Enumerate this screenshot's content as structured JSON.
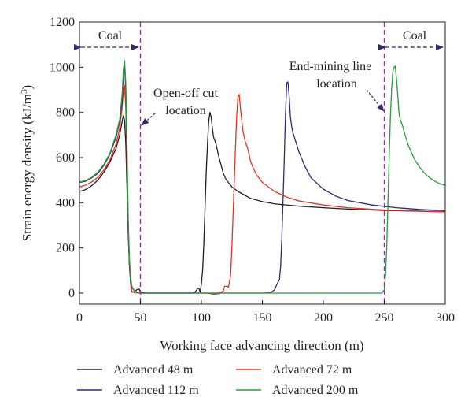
{
  "chart_data": {
    "type": "line",
    "xlabel": "Working face advancing direction (m)",
    "ylabel": "Strain energy density (kJ/m",
    "ylabel_sup": "3",
    "ylabel_close": ")",
    "xlim": [
      0,
      300
    ],
    "ylim": [
      -40,
      1200
    ],
    "x_ticks": [
      0,
      50,
      100,
      150,
      200,
      250,
      300
    ],
    "y_ticks": [
      0,
      200,
      400,
      600,
      800,
      1000,
      1200
    ],
    "grid": false,
    "legend_position": "bottom",
    "series": [
      {
        "name": "Advanced 48 m",
        "color": "#231f20",
        "points": [
          [
            0,
            450
          ],
          [
            5,
            458
          ],
          [
            10,
            475
          ],
          [
            15,
            500
          ],
          [
            20,
            535
          ],
          [
            25,
            580
          ],
          [
            30,
            640
          ],
          [
            33,
            700
          ],
          [
            35,
            760
          ],
          [
            36,
            785
          ],
          [
            37,
            765
          ],
          [
            38,
            660
          ],
          [
            39,
            460
          ],
          [
            40,
            260
          ],
          [
            41,
            120
          ],
          [
            42,
            40
          ],
          [
            43,
            5
          ],
          [
            45,
            5
          ],
          [
            47,
            15
          ],
          [
            49,
            18
          ],
          [
            50,
            5
          ],
          [
            55,
            0
          ],
          [
            92,
            0
          ],
          [
            95,
            5
          ],
          [
            97,
            22
          ],
          [
            98,
            20
          ],
          [
            99,
            5
          ],
          [
            100,
            40
          ],
          [
            101,
            100
          ],
          [
            102,
            220
          ],
          [
            103,
            380
          ],
          [
            104,
            540
          ],
          [
            105,
            660
          ],
          [
            106,
            760
          ],
          [
            107,
            800
          ],
          [
            108,
            780
          ],
          [
            109,
            730
          ],
          [
            110,
            690
          ],
          [
            112,
            660
          ],
          [
            114,
            610
          ],
          [
            116,
            570
          ],
          [
            118,
            530
          ],
          [
            120,
            505
          ],
          [
            125,
            470
          ],
          [
            130,
            450
          ],
          [
            140,
            420
          ],
          [
            150,
            405
          ],
          [
            160,
            395
          ],
          [
            180,
            385
          ],
          [
            200,
            378
          ],
          [
            220,
            372
          ],
          [
            250,
            366
          ],
          [
            300,
            360
          ]
        ]
      },
      {
        "name": "Advanced 72 m",
        "color": "#e8311f",
        "points": [
          [
            0,
            470
          ],
          [
            5,
            478
          ],
          [
            10,
            492
          ],
          [
            15,
            512
          ],
          [
            20,
            545
          ],
          [
            25,
            590
          ],
          [
            30,
            660
          ],
          [
            33,
            730
          ],
          [
            35,
            820
          ],
          [
            36,
            900
          ],
          [
            37,
            920
          ],
          [
            38,
            820
          ],
          [
            39,
            560
          ],
          [
            40,
            300
          ],
          [
            41,
            120
          ],
          [
            42,
            40
          ],
          [
            43,
            8
          ],
          [
            45,
            2
          ],
          [
            50,
            0
          ],
          [
            105,
            0
          ],
          [
            110,
            -5
          ],
          [
            115,
            -2
          ],
          [
            118,
            10
          ],
          [
            119,
            30
          ],
          [
            121,
            30
          ],
          [
            122,
            25
          ],
          [
            123,
            50
          ],
          [
            124,
            80
          ],
          [
            125,
            200
          ],
          [
            126,
            350
          ],
          [
            127,
            500
          ],
          [
            128,
            650
          ],
          [
            129,
            790
          ],
          [
            130,
            870
          ],
          [
            131,
            880
          ],
          [
            132,
            820
          ],
          [
            134,
            720
          ],
          [
            136,
            670
          ],
          [
            138,
            640
          ],
          [
            140,
            590
          ],
          [
            142,
            560
          ],
          [
            145,
            525
          ],
          [
            150,
            490
          ],
          [
            160,
            450
          ],
          [
            170,
            425
          ],
          [
            180,
            408
          ],
          [
            200,
            390
          ],
          [
            220,
            378
          ],
          [
            250,
            368
          ],
          [
            300,
            360
          ]
        ]
      },
      {
        "name": "Advanced 112 m",
        "color": "#2e2a78",
        "points": [
          [
            0,
            490
          ],
          [
            5,
            495
          ],
          [
            10,
            510
          ],
          [
            15,
            530
          ],
          [
            20,
            565
          ],
          [
            25,
            615
          ],
          [
            30,
            690
          ],
          [
            33,
            760
          ],
          [
            35,
            850
          ],
          [
            36,
            960
          ],
          [
            37,
            1005
          ],
          [
            38,
            900
          ],
          [
            39,
            600
          ],
          [
            40,
            300
          ],
          [
            41,
            130
          ],
          [
            42,
            60
          ],
          [
            43,
            25
          ],
          [
            45,
            10
          ],
          [
            47,
            5
          ],
          [
            50,
            0
          ],
          [
            150,
            0
          ],
          [
            157,
            2
          ],
          [
            160,
            15
          ],
          [
            162,
            40
          ],
          [
            164,
            60
          ],
          [
            165,
            120
          ],
          [
            166,
            250
          ],
          [
            167,
            420
          ],
          [
            168,
            600
          ],
          [
            169,
            800
          ],
          [
            170,
            930
          ],
          [
            171,
            935
          ],
          [
            172,
            870
          ],
          [
            173,
            780
          ],
          [
            174,
            740
          ],
          [
            175,
            710
          ],
          [
            176,
            695
          ],
          [
            178,
            660
          ],
          [
            180,
            625
          ],
          [
            185,
            560
          ],
          [
            190,
            510
          ],
          [
            200,
            460
          ],
          [
            210,
            430
          ],
          [
            220,
            410
          ],
          [
            240,
            390
          ],
          [
            260,
            378
          ],
          [
            280,
            370
          ],
          [
            300,
            365
          ]
        ]
      },
      {
        "name": "Advanced 200 m",
        "color": "#2a9a3a",
        "points": [
          [
            0,
            492
          ],
          [
            5,
            498
          ],
          [
            10,
            512
          ],
          [
            15,
            535
          ],
          [
            20,
            570
          ],
          [
            25,
            620
          ],
          [
            30,
            700
          ],
          [
            33,
            770
          ],
          [
            35,
            880
          ],
          [
            36,
            990
          ],
          [
            37,
            1030
          ],
          [
            38,
            930
          ],
          [
            39,
            650
          ],
          [
            40,
            330
          ],
          [
            41,
            150
          ],
          [
            42,
            70
          ],
          [
            43,
            30
          ],
          [
            45,
            10
          ],
          [
            47,
            5
          ],
          [
            50,
            0
          ],
          [
            248,
            0
          ],
          [
            250,
            15
          ],
          [
            251,
            80
          ],
          [
            252,
            200
          ],
          [
            253,
            400
          ],
          [
            254,
            600
          ],
          [
            255,
            780
          ],
          [
            256,
            900
          ],
          [
            257,
            980
          ],
          [
            258,
            1000
          ],
          [
            259,
            1005
          ],
          [
            260,
            950
          ],
          [
            261,
            880
          ],
          [
            262,
            800
          ],
          [
            263,
            770
          ],
          [
            265,
            740
          ],
          [
            267,
            700
          ],
          [
            270,
            650
          ],
          [
            275,
            590
          ],
          [
            280,
            550
          ],
          [
            285,
            520
          ],
          [
            290,
            500
          ],
          [
            295,
            485
          ],
          [
            300,
            478
          ]
        ]
      }
    ],
    "markers": [
      {
        "x": 50,
        "color": "#8a3a9a"
      },
      {
        "x": 250,
        "color": "#8a3a9a"
      }
    ],
    "annotations": {
      "coal_left": "Coal",
      "coal_right": "Coal",
      "open_off_cut_line1": "Open-off cut",
      "open_off_cut_line2": "location",
      "end_mining_line1": "End-mining line",
      "end_mining_line2": "location"
    },
    "arrow_color": "#2e2a78"
  }
}
